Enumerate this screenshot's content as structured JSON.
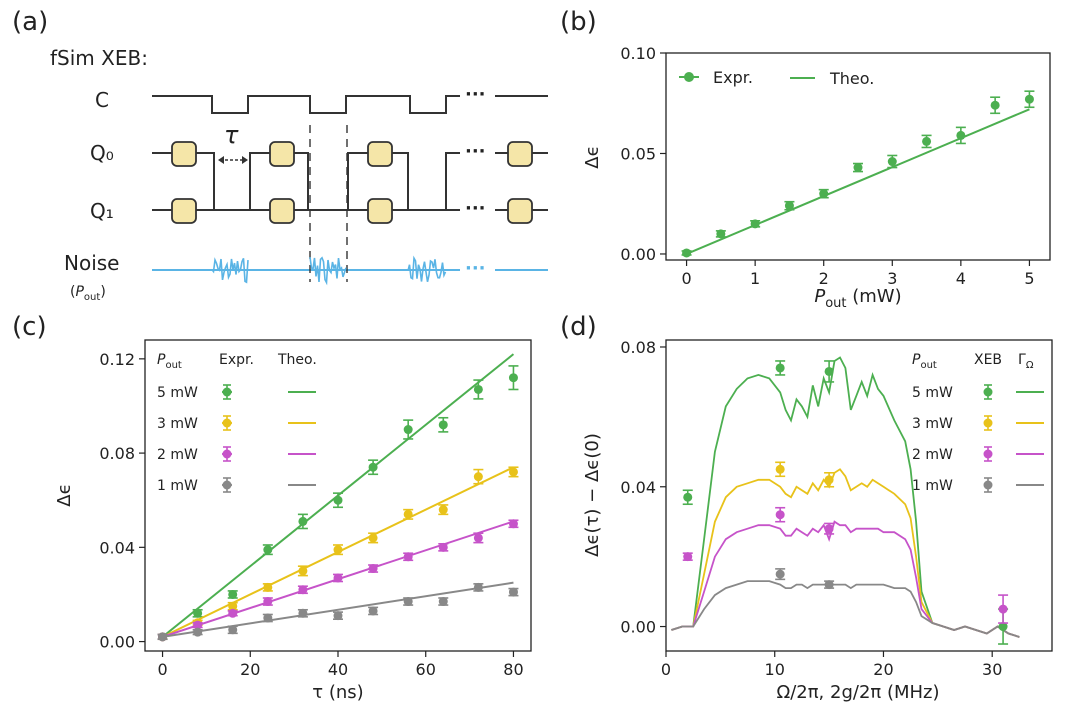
{
  "panels": {
    "a": {
      "letter": "(a)",
      "title": "fSim XEB:",
      "rows": [
        {
          "label": "C"
        },
        {
          "label": "Q₀"
        },
        {
          "label": "Q₁"
        },
        {
          "label": "Noise",
          "sublabel": "(P_out)"
        }
      ],
      "tau_label": "τ",
      "ellipsis": "···",
      "colors": {
        "gate": "#f5e6a8",
        "noise": "#5ab4e5",
        "line": "#333333"
      }
    },
    "b": {
      "letter": "(b)"
    },
    "c": {
      "letter": "(c)"
    },
    "d": {
      "letter": "(d)"
    }
  },
  "chart_data": [
    {
      "id": "b",
      "type": "scatter",
      "xlabel": "P_out (mW)",
      "ylabel": "Δϵ",
      "xlim": [
        -0.3,
        5.3
      ],
      "ylim": [
        -0.003,
        0.1
      ],
      "xticks": [
        0,
        1,
        2,
        3,
        4,
        5
      ],
      "yticks": [
        0.0,
        0.05,
        0.1
      ],
      "yticklabels": [
        "0.00",
        "0.05",
        "0.10"
      ],
      "legend": {
        "position": "top-left",
        "expr": "Expr.",
        "theo": "Theo."
      },
      "color": "#4caf50",
      "series": [
        {
          "kind": "points",
          "x": [
            0,
            0.5,
            1,
            1.5,
            2,
            2.5,
            3,
            3.5,
            4,
            4.5,
            5
          ],
          "y": [
            0.0005,
            0.01,
            0.015,
            0.024,
            0.03,
            0.043,
            0.046,
            0.056,
            0.059,
            0.074,
            0.077
          ],
          "err": [
            0.001,
            0.0015,
            0.0015,
            0.002,
            0.002,
            0.002,
            0.003,
            0.003,
            0.004,
            0.004,
            0.004
          ]
        },
        {
          "kind": "line",
          "x": [
            0,
            5
          ],
          "y": [
            0.0,
            0.072
          ]
        }
      ]
    },
    {
      "id": "c",
      "type": "scatter",
      "xlabel": "τ (ns)",
      "ylabel": "Δϵ",
      "xlim": [
        -4,
        84
      ],
      "ylim": [
        -0.004,
        0.128
      ],
      "xticks": [
        0,
        20,
        40,
        60,
        80
      ],
      "yticks": [
        0.0,
        0.04,
        0.08,
        0.12
      ],
      "yticklabels": [
        "0.00",
        "0.04",
        "0.08",
        "0.12"
      ],
      "legend": {
        "position": "top-left",
        "header": [
          "P_out",
          "Expr.",
          "Theo."
        ]
      },
      "x": [
        0,
        8,
        16,
        24,
        32,
        40,
        48,
        56,
        64,
        72,
        80
      ],
      "series": [
        {
          "name": "5 mW",
          "color": "#4caf50",
          "y": [
            0.002,
            0.012,
            0.02,
            0.039,
            0.051,
            0.06,
            0.074,
            0.09,
            0.092,
            0.107,
            0.112
          ],
          "err": [
            0.001,
            0.0015,
            0.0015,
            0.002,
            0.003,
            0.003,
            0.003,
            0.004,
            0.003,
            0.004,
            0.005
          ],
          "theo": [
            0.002,
            0.122
          ]
        },
        {
          "name": "3 mW",
          "color": "#e8c21a",
          "y": [
            0.002,
            0.008,
            0.015,
            0.023,
            0.03,
            0.039,
            0.044,
            0.054,
            0.056,
            0.07,
            0.072
          ],
          "err": [
            0.001,
            0.001,
            0.0015,
            0.0015,
            0.002,
            0.002,
            0.002,
            0.002,
            0.002,
            0.003,
            0.002
          ],
          "theo": [
            0.002,
            0.074
          ]
        },
        {
          "name": "2 mW",
          "color": "#c653c9",
          "y": [
            0.002,
            0.007,
            0.012,
            0.017,
            0.022,
            0.027,
            0.031,
            0.036,
            0.04,
            0.044,
            0.05
          ],
          "err": [
            0.001,
            0.001,
            0.001,
            0.0015,
            0.0015,
            0.0015,
            0.0015,
            0.0015,
            0.0015,
            0.002,
            0.0015
          ],
          "theo": [
            0.002,
            0.051
          ]
        },
        {
          "name": "1 mW",
          "color": "#888888",
          "y": [
            0.002,
            0.004,
            0.005,
            0.01,
            0.012,
            0.011,
            0.013,
            0.017,
            0.017,
            0.023,
            0.021
          ],
          "err": [
            0.001,
            0.001,
            0.0015,
            0.0015,
            0.0015,
            0.0015,
            0.0015,
            0.0015,
            0.0015,
            0.0015,
            0.0015
          ],
          "theo": [
            0.002,
            0.025
          ]
        }
      ]
    },
    {
      "id": "d",
      "type": "line",
      "xlabel": "Ω/2π, 2g/2π (MHz)",
      "ylabel": "Δϵ(τ) − Δϵ(0)",
      "xlim": [
        0,
        35.5
      ],
      "ylim": [
        -0.007,
        0.082
      ],
      "xticks": [
        0,
        10,
        20,
        30
      ],
      "yticks": [
        0.0,
        0.04,
        0.08
      ],
      "yticklabels": [
        "0.00",
        "0.04",
        "0.08"
      ],
      "legend": {
        "position": "top-right",
        "header": [
          "P_out",
          "XEB",
          "Γ_Ω"
        ]
      },
      "series": [
        {
          "name": "5 mW",
          "color": "#4caf50",
          "points_x": [
            2,
            10.5,
            15,
            31
          ],
          "points_y": [
            0.037,
            0.074,
            0.073,
            0.0
          ],
          "err": [
            0.002,
            0.002,
            0.003,
            0.005
          ],
          "curve_x": [
            0.5,
            1.5,
            2.5,
            3.5,
            4.5,
            5.5,
            6.5,
            7.5,
            8.5,
            9.5,
            10.5,
            11,
            11.5,
            12,
            12.5,
            13,
            13.5,
            14,
            14.5,
            15,
            15.5,
            16,
            16.5,
            17,
            17.5,
            18,
            18.5,
            19,
            19.5,
            20,
            21,
            22,
            22.5,
            23,
            23.5,
            24.5,
            25.5,
            26.5,
            27.5,
            28.5,
            29.5,
            30.5,
            31.5,
            32.5
          ],
          "curve_y": [
            -0.001,
            0.0,
            0.0,
            0.025,
            0.05,
            0.063,
            0.068,
            0.071,
            0.072,
            0.071,
            0.067,
            0.062,
            0.059,
            0.065,
            0.063,
            0.06,
            0.069,
            0.063,
            0.071,
            0.067,
            0.076,
            0.077,
            0.074,
            0.062,
            0.066,
            0.07,
            0.066,
            0.072,
            0.068,
            0.066,
            0.059,
            0.053,
            0.045,
            0.03,
            0.01,
            0.001,
            0.0,
            -0.001,
            0.0,
            -0.001,
            -0.002,
            0.0,
            -0.002,
            -0.003
          ]
        },
        {
          "name": "3 mW",
          "color": "#e8c21a",
          "points_x": [
            10.5,
            15
          ],
          "points_y": [
            0.045,
            0.042
          ],
          "err": [
            0.002,
            0.002
          ],
          "curve_x": [
            0.5,
            1.5,
            2.5,
            3.5,
            4.5,
            5.5,
            6.5,
            7.5,
            8.5,
            9.5,
            10.5,
            11,
            11.5,
            12,
            12.5,
            13,
            13.5,
            14,
            14.5,
            15,
            15.5,
            16,
            16.5,
            17,
            17.5,
            18,
            18.5,
            19,
            19.5,
            20,
            21,
            22,
            22.5,
            23,
            23.5,
            24.5,
            25.5,
            26.5,
            27.5,
            28.5,
            29.5,
            30.5,
            31.5,
            32.5
          ],
          "curve_y": [
            -0.001,
            0.0,
            0.0,
            0.015,
            0.03,
            0.037,
            0.04,
            0.041,
            0.042,
            0.042,
            0.04,
            0.038,
            0.037,
            0.04,
            0.039,
            0.038,
            0.041,
            0.039,
            0.042,
            0.04,
            0.044,
            0.045,
            0.043,
            0.039,
            0.04,
            0.041,
            0.04,
            0.042,
            0.041,
            0.04,
            0.038,
            0.035,
            0.031,
            0.02,
            0.007,
            0.001,
            0.0,
            -0.001,
            0.0,
            -0.001,
            -0.002,
            0.0,
            -0.002,
            -0.003
          ]
        },
        {
          "name": "2 mW",
          "color": "#c653c9",
          "points_x": [
            2,
            10.5,
            15,
            31
          ],
          "points_y": [
            0.02,
            0.032,
            0.028,
            0.005
          ],
          "err": [
            0.001,
            0.002,
            0.0015,
            0.004
          ],
          "curve_x": [
            0.5,
            1.5,
            2.5,
            3.5,
            4.5,
            5.5,
            6.5,
            7.5,
            8.5,
            9.5,
            10.5,
            11,
            11.5,
            12,
            12.5,
            13,
            13.5,
            14,
            14.5,
            15,
            15.5,
            16,
            16.5,
            17,
            17.5,
            18,
            18.5,
            19,
            19.5,
            20,
            21,
            22,
            22.5,
            23,
            23.5,
            24.5,
            25.5,
            26.5,
            27.5,
            28.5,
            29.5,
            30.5,
            31.5,
            32.5
          ],
          "curve_y": [
            -0.001,
            0.0,
            0.0,
            0.01,
            0.02,
            0.025,
            0.027,
            0.028,
            0.029,
            0.029,
            0.028,
            0.026,
            0.026,
            0.028,
            0.027,
            0.026,
            0.028,
            0.027,
            0.029,
            0.025,
            0.03,
            0.029,
            0.029,
            0.027,
            0.028,
            0.028,
            0.028,
            0.028,
            0.028,
            0.027,
            0.027,
            0.025,
            0.022,
            0.014,
            0.005,
            0.001,
            0.0,
            -0.001,
            0.0,
            -0.001,
            -0.002,
            0.0,
            -0.002,
            -0.003
          ]
        },
        {
          "name": "1 mW",
          "color": "#888888",
          "points_x": [
            10.5,
            15
          ],
          "points_y": [
            0.015,
            0.012
          ],
          "err": [
            0.0015,
            0.001
          ],
          "curve_x": [
            0.5,
            1.5,
            2.5,
            3.5,
            4.5,
            5.5,
            6.5,
            7.5,
            8.5,
            9.5,
            10.5,
            11,
            11.5,
            12,
            12.5,
            13,
            13.5,
            14,
            14.5,
            15,
            15.5,
            16,
            16.5,
            17,
            17.5,
            18,
            18.5,
            19,
            19.5,
            20,
            21,
            22,
            22.5,
            23,
            23.5,
            24.5,
            25.5,
            26.5,
            27.5,
            28.5,
            29.5,
            30.5,
            31.5,
            32.5
          ],
          "curve_y": [
            -0.001,
            0.0,
            0.0,
            0.005,
            0.009,
            0.011,
            0.012,
            0.013,
            0.013,
            0.013,
            0.012,
            0.011,
            0.011,
            0.012,
            0.012,
            0.011,
            0.012,
            0.012,
            0.012,
            0.012,
            0.012,
            0.012,
            0.012,
            0.011,
            0.012,
            0.012,
            0.012,
            0.012,
            0.012,
            0.012,
            0.011,
            0.011,
            0.01,
            0.007,
            0.003,
            0.001,
            0.0,
            -0.001,
            0.0,
            -0.001,
            -0.002,
            0.0,
            -0.002,
            -0.003
          ]
        }
      ]
    }
  ]
}
